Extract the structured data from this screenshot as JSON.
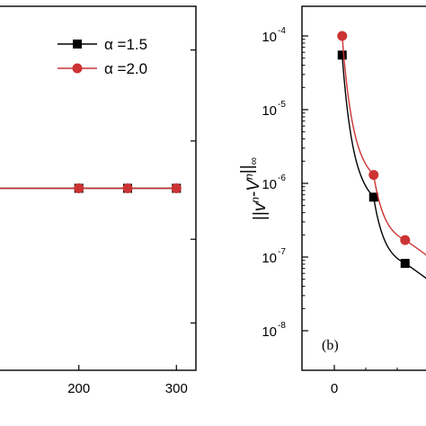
{
  "chart_data": [
    {
      "panel": "a",
      "type": "line",
      "x_ticks": [
        200,
        300
      ],
      "x_tick_labels": [
        "200",
        "300"
      ],
      "xlim": [
        110,
        320
      ],
      "series": [
        {
          "name": "α =1.5",
          "color": "#000000",
          "marker": "square",
          "x": [
            200,
            250,
            300
          ],
          "y": [
            0.5,
            0.5,
            0.5
          ]
        },
        {
          "name": "α =2.0",
          "color": "#cc3333",
          "marker": "circle",
          "x": [
            200,
            250,
            300
          ],
          "y": [
            0.5,
            0.5,
            0.5
          ]
        }
      ],
      "legend": {
        "placement": "top-right",
        "entries": [
          {
            "label": "α =1.5",
            "color": "#000000",
            "marker": "square"
          },
          {
            "label": "α =2.0",
            "color": "#cc3333",
            "marker": "circle"
          }
        ]
      }
    },
    {
      "panel": "b",
      "type": "line",
      "panel_label": "(b)",
      "y_scale": "log",
      "ylabel_parts": [
        "||",
        "v",
        "n",
        "-",
        "V",
        "n",
        "||",
        "∞"
      ],
      "y_ticks": [
        {
          "value": 0.0001,
          "base": "10",
          "exp": "-4"
        },
        {
          "value": 1e-05,
          "base": "10",
          "exp": "-5"
        },
        {
          "value": 1e-06,
          "base": "10",
          "exp": "-6"
        },
        {
          "value": 1e-07,
          "base": "10",
          "exp": "-7"
        },
        {
          "value": 1e-08,
          "base": "10",
          "exp": "-8"
        }
      ],
      "x_ticks": [
        0
      ],
      "x_tick_labels": [
        "0"
      ],
      "series": [
        {
          "name": "α =1.5",
          "color": "#000000",
          "marker": "square",
          "x": [
            1,
            5,
            9
          ],
          "y": [
            5.5e-05,
            6.5e-07,
            8.2e-08
          ]
        },
        {
          "name": "α =2.0",
          "color": "#cc3333",
          "marker": "circle",
          "x": [
            1,
            5,
            9
          ],
          "y": [
            0.0001,
            1.3e-06,
            1.7e-07
          ]
        }
      ]
    }
  ]
}
